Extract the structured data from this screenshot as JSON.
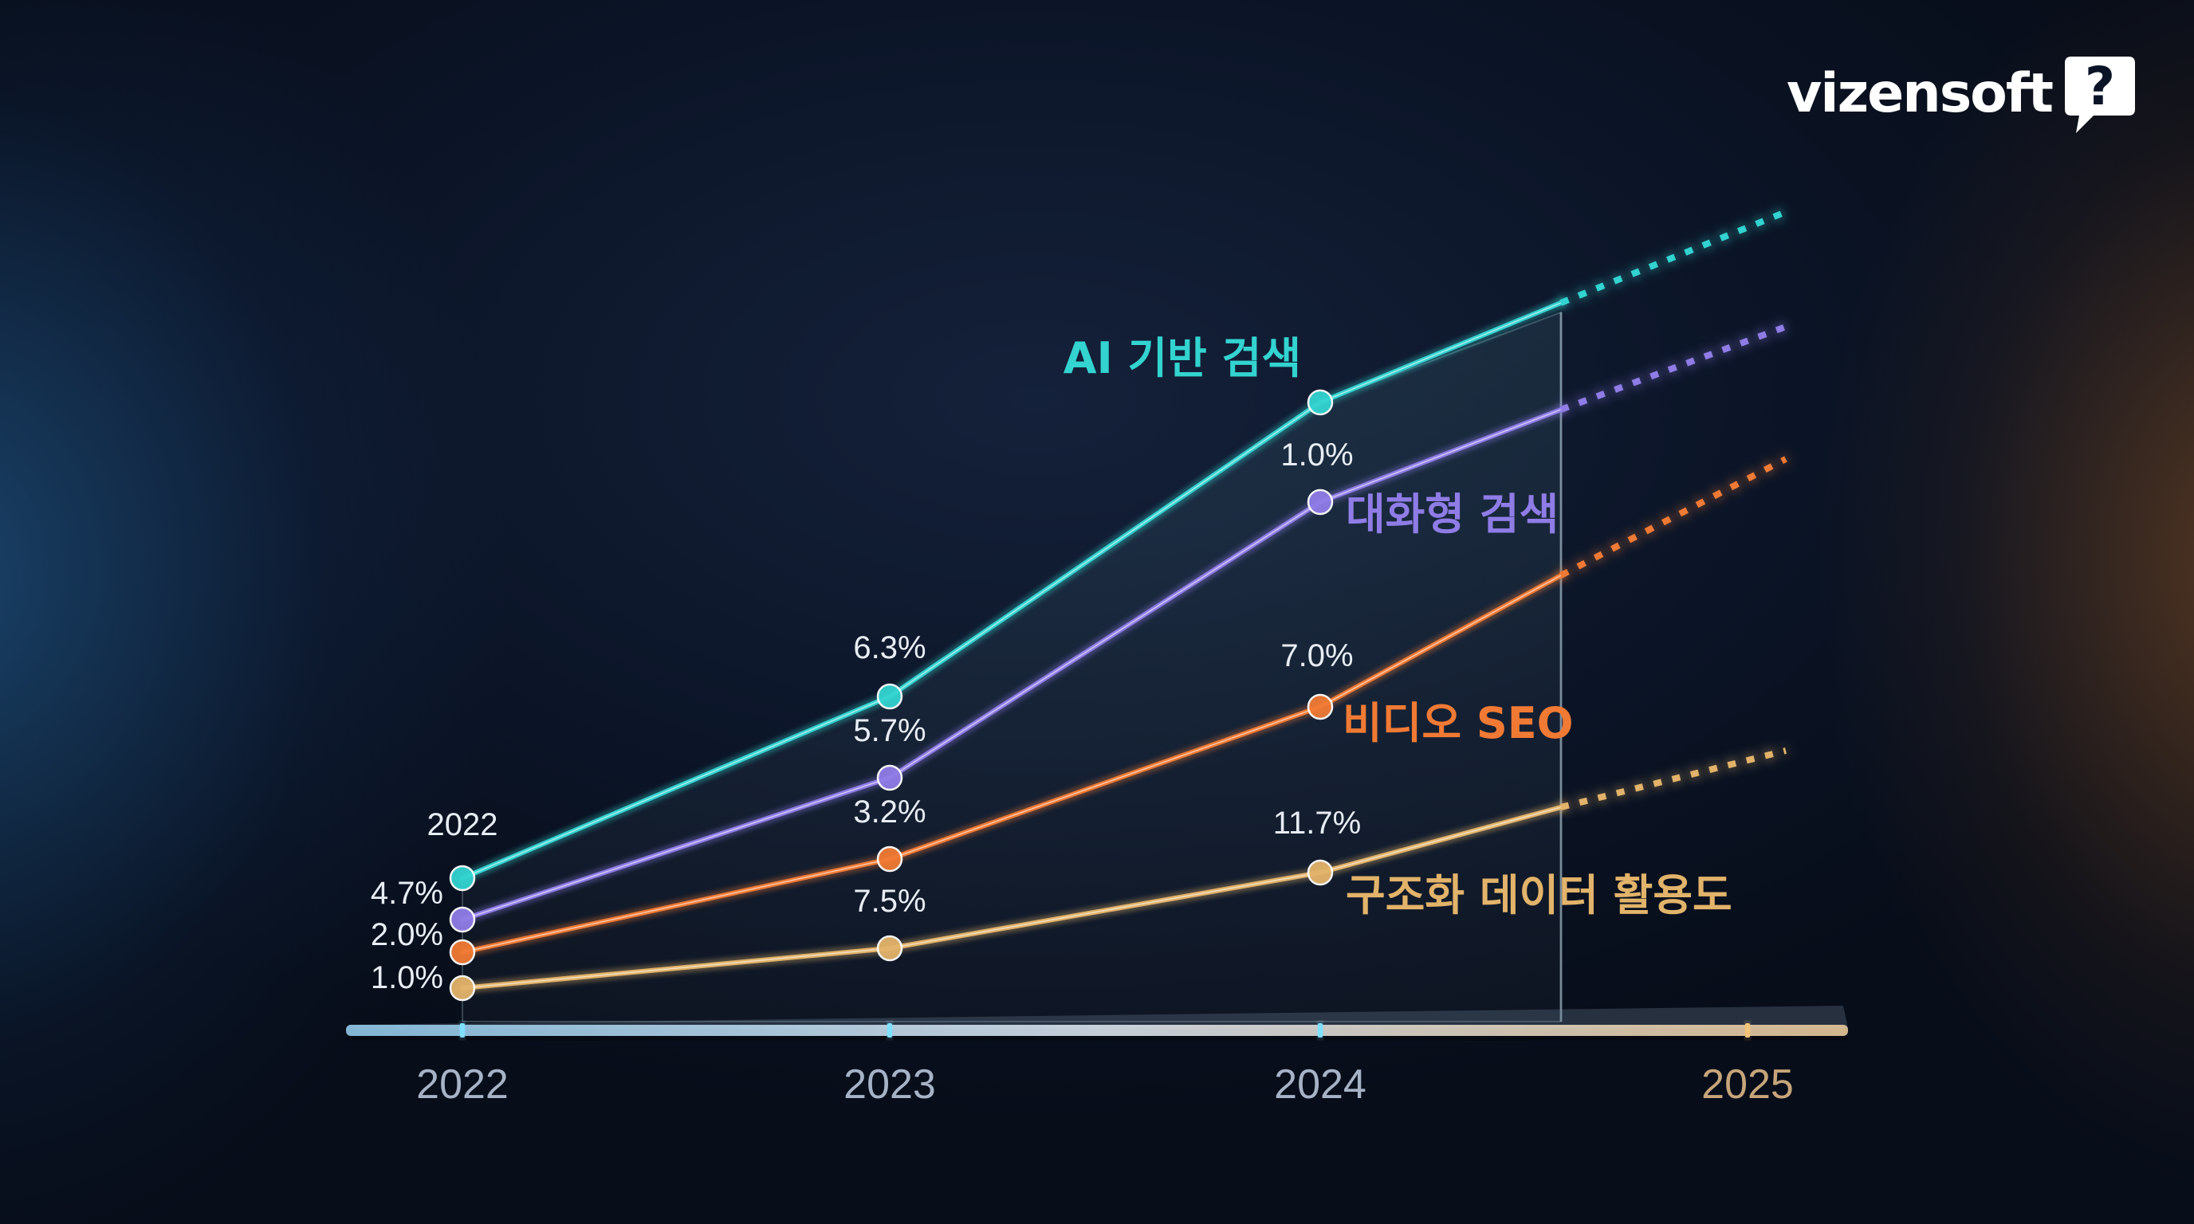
{
  "brand": {
    "name": "vizensoft",
    "mark": "?",
    "mark_icon": "speech-bubble-question-icon"
  },
  "colors": {
    "ai_search": "#33d3d0",
    "conversational_search": "#8f7ce6",
    "video_seo": "#f07a34",
    "structured_data": "#e2b36a",
    "axis_label": "#a6b3c7",
    "axis_label_2025": "#c7a57a",
    "value_label": "#e8edf5"
  },
  "chart_data": {
    "type": "line",
    "title": "",
    "xlabel": "",
    "ylabel": "",
    "x": [
      "2022",
      "2023",
      "2024",
      "2025"
    ],
    "grid": false,
    "legend": "inline labels at line ends",
    "projection": "dashed extension toward 2025",
    "series": [
      {
        "name": "AI 기반 검색",
        "key": "ai_search",
        "points": [
          {
            "x": "2022",
            "label": "2022"
          },
          {
            "x": "2023",
            "label": "6.3%"
          },
          {
            "x": "2024",
            "label": ""
          }
        ]
      },
      {
        "name": "대화형 검색",
        "key": "conversational_search",
        "points": [
          {
            "x": "2022",
            "label": "4.7%"
          },
          {
            "x": "2023",
            "label": "5.7%"
          },
          {
            "x": "2024",
            "label": "1.0%"
          }
        ]
      },
      {
        "name": "비디오 SEO",
        "key": "video_seo",
        "points": [
          {
            "x": "2022",
            "label": "2.0%"
          },
          {
            "x": "2023",
            "label": "3.2%"
          },
          {
            "x": "2024",
            "label": "7.0%"
          }
        ]
      },
      {
        "name": "구조화 데이터 활용도",
        "key": "structured_data",
        "points": [
          {
            "x": "2022",
            "label": "1.0%"
          },
          {
            "x": "2023",
            "label": "7.5%"
          },
          {
            "x": "2024",
            "label": "11.7%"
          }
        ]
      }
    ]
  }
}
